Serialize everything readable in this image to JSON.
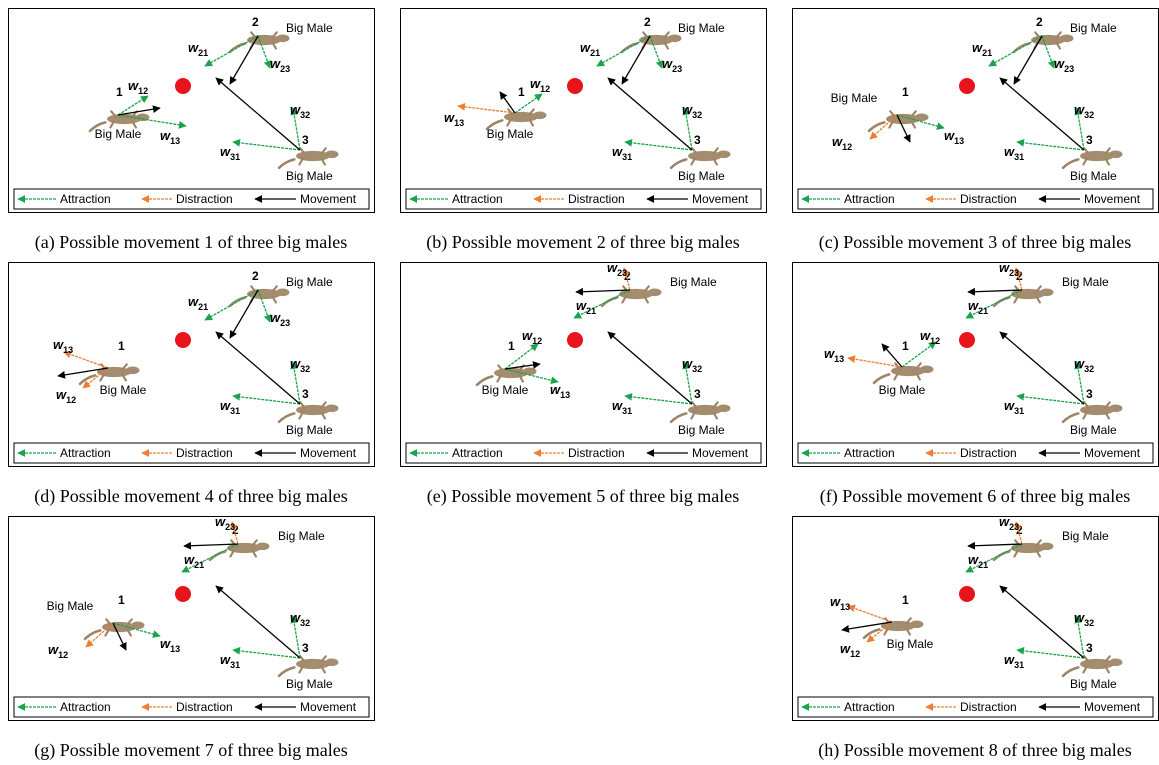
{
  "panels": [
    {
      "caption": "(a) Possible movement 1 of three big males",
      "nodes": [
        {
          "number": "1",
          "label": "Big Male"
        },
        {
          "number": "2",
          "label": "Big Male"
        },
        {
          "number": "3",
          "label": "Big Male"
        }
      ],
      "weights": [
        {
          "symbol": "w",
          "subscript": "12"
        },
        {
          "symbol": "w",
          "subscript": "13"
        },
        {
          "symbol": "w",
          "subscript": "21"
        },
        {
          "symbol": "w",
          "subscript": "23"
        },
        {
          "symbol": "w",
          "subscript": "31"
        },
        {
          "symbol": "w",
          "subscript": "32"
        }
      ],
      "legend": [
        "Attraction",
        "Distraction",
        "Movement"
      ]
    },
    {
      "caption": "(b) Possible movement 2 of three big males",
      "nodes": [
        {
          "number": "1",
          "label": "Big Male"
        },
        {
          "number": "2",
          "label": "Big Male"
        },
        {
          "number": "3",
          "label": "Big Male"
        }
      ],
      "weights": [
        {
          "symbol": "w",
          "subscript": "12"
        },
        {
          "symbol": "w",
          "subscript": "13"
        },
        {
          "symbol": "w",
          "subscript": "21"
        },
        {
          "symbol": "w",
          "subscript": "23"
        },
        {
          "symbol": "w",
          "subscript": "31"
        },
        {
          "symbol": "w",
          "subscript": "32"
        }
      ],
      "legend": [
        "Attraction",
        "Distraction",
        "Movement"
      ]
    },
    {
      "caption": "(c) Possible movement 3 of three big males",
      "nodes": [
        {
          "number": "1",
          "label": "Big Male"
        },
        {
          "number": "2",
          "label": "Big Male"
        },
        {
          "number": "3",
          "label": "Big Male"
        }
      ],
      "weights": [
        {
          "symbol": "w",
          "subscript": "12"
        },
        {
          "symbol": "w",
          "subscript": "13"
        },
        {
          "symbol": "w",
          "subscript": "21"
        },
        {
          "symbol": "w",
          "subscript": "23"
        },
        {
          "symbol": "w",
          "subscript": "31"
        },
        {
          "symbol": "w",
          "subscript": "32"
        }
      ],
      "legend": [
        "Attraction",
        "Distraction",
        "Movement"
      ]
    },
    {
      "caption": "(d) Possible movement 4 of three big males",
      "nodes": [
        {
          "number": "1",
          "label": "Big Male"
        },
        {
          "number": "2",
          "label": "Big Male"
        },
        {
          "number": "3",
          "label": "Big Male"
        }
      ],
      "weights": [
        {
          "symbol": "w",
          "subscript": "12"
        },
        {
          "symbol": "w",
          "subscript": "13"
        },
        {
          "symbol": "w",
          "subscript": "21"
        },
        {
          "symbol": "w",
          "subscript": "23"
        },
        {
          "symbol": "w",
          "subscript": "31"
        },
        {
          "symbol": "w",
          "subscript": "32"
        }
      ],
      "legend": [
        "Attraction",
        "Distraction",
        "Movement"
      ]
    },
    {
      "caption": "(e) Possible movement 5 of three big males",
      "nodes": [
        {
          "number": "1",
          "label": "Big Male"
        },
        {
          "number": "2",
          "label": "Big Male"
        },
        {
          "number": "3",
          "label": "Big Male"
        }
      ],
      "weights": [
        {
          "symbol": "w",
          "subscript": "12"
        },
        {
          "symbol": "w",
          "subscript": "13"
        },
        {
          "symbol": "w",
          "subscript": "21"
        },
        {
          "symbol": "w",
          "subscript": "23"
        },
        {
          "symbol": "w",
          "subscript": "31"
        },
        {
          "symbol": "w",
          "subscript": "32"
        }
      ],
      "legend": [
        "Attraction",
        "Distraction",
        "Movement"
      ]
    },
    {
      "caption": "(f) Possible movement 6 of three big males",
      "nodes": [
        {
          "number": "1",
          "label": "Big Male"
        },
        {
          "number": "2",
          "label": "Big Male"
        },
        {
          "number": "3",
          "label": "Big Male"
        }
      ],
      "weights": [
        {
          "symbol": "w",
          "subscript": "12"
        },
        {
          "symbol": "w",
          "subscript": "13"
        },
        {
          "symbol": "w",
          "subscript": "21"
        },
        {
          "symbol": "w",
          "subscript": "23"
        },
        {
          "symbol": "w",
          "subscript": "31"
        },
        {
          "symbol": "w",
          "subscript": "32"
        }
      ],
      "legend": [
        "Attraction",
        "Distraction",
        "Movement"
      ]
    },
    {
      "caption": "(g) Possible movement 7 of three big males",
      "nodes": [
        {
          "number": "1",
          "label": "Big Male"
        },
        {
          "number": "2",
          "label": "Big Male"
        },
        {
          "number": "3",
          "label": "Big Male"
        }
      ],
      "weights": [
        {
          "symbol": "w",
          "subscript": "12"
        },
        {
          "symbol": "w",
          "subscript": "13"
        },
        {
          "symbol": "w",
          "subscript": "21"
        },
        {
          "symbol": "w",
          "subscript": "23"
        },
        {
          "symbol": "w",
          "subscript": "31"
        },
        {
          "symbol": "w",
          "subscript": "32"
        }
      ],
      "legend": [
        "Attraction",
        "Distraction",
        "Movement"
      ]
    },
    {
      "caption": "(h) Possible movement 8 of three big males",
      "nodes": [
        {
          "number": "1",
          "label": "Big Male"
        },
        {
          "number": "2",
          "label": "Big Male"
        },
        {
          "number": "3",
          "label": "Big Male"
        }
      ],
      "weights": [
        {
          "symbol": "w",
          "subscript": "12"
        },
        {
          "symbol": "w",
          "subscript": "13"
        },
        {
          "symbol": "w",
          "subscript": "21"
        },
        {
          "symbol": "w",
          "subscript": "23"
        },
        {
          "symbol": "w",
          "subscript": "31"
        },
        {
          "symbol": "w",
          "subscript": "32"
        }
      ],
      "legend": [
        "Attraction",
        "Distraction",
        "Movement"
      ]
    }
  ]
}
